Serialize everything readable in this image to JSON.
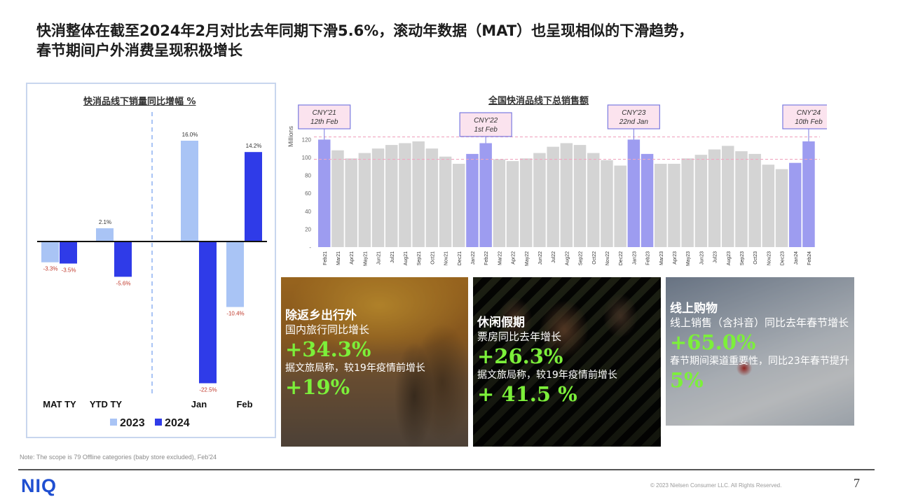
{
  "title": {
    "line1": "快消整体在截至2024年2月对比去年同期下滑5.6%，滚动年数据（MAT）也呈现相似的下滑趋势，",
    "line2": "春节期间户外消费呈现积极增长"
  },
  "colors": {
    "c2023": "#a9c4f5",
    "c2024": "#2f3be8",
    "gray": "#d4d4d4",
    "highlight": "#9d9cf0",
    "ref_line": "#f0a6c0",
    "neg_label": "#c0392b",
    "green": "#7cf03a"
  },
  "chart_data": [
    {
      "type": "bar",
      "title": "快消品线下销量同比增幅 %",
      "categories": [
        "MAT TY",
        "YTD TY",
        "Jan",
        "Feb"
      ],
      "series": [
        {
          "name": "2023",
          "values": [
            -3.3,
            2.1,
            16.0,
            -10.4
          ]
        },
        {
          "name": "2024",
          "values": [
            -3.5,
            -5.6,
            -22.5,
            14.2
          ]
        }
      ],
      "data_labels": {
        "2023": [
          "-3.3%",
          "2.1%",
          "16.0%",
          "-10.4%"
        ],
        "2024": [
          "-3.5%",
          "-5.6%",
          "-22.5%",
          "14.2%"
        ]
      },
      "ylim": [
        -25,
        18
      ],
      "legend": "bottom"
    },
    {
      "type": "bar",
      "title": "全国快消品线下总销售额",
      "ylabel": "Millions",
      "yticks": [
        "-",
        "20",
        "40",
        "60",
        "80",
        "100",
        "120"
      ],
      "ylim": [
        0,
        130
      ],
      "categories": [
        "Feb21",
        "Mar21",
        "Apr21",
        "May21",
        "Jun21",
        "Jul21",
        "Aug21",
        "Sep21",
        "Oct21",
        "Nov21",
        "Dec21",
        "Jan22",
        "Feb22",
        "Mar22",
        "Apr22",
        "May22",
        "Jun22",
        "Jul22",
        "Aug22",
        "Sep22",
        "Oct22",
        "Nov22",
        "Dec22",
        "Jan23",
        "Feb23",
        "Mar23",
        "Apr23",
        "May23",
        "Jun23",
        "Jul23",
        "Aug23",
        "Sep23",
        "Oct23",
        "Nov23",
        "Dec23",
        "Jan24",
        "Feb24"
      ],
      "values": [
        120,
        108,
        99,
        105,
        110,
        114,
        116,
        118,
        110,
        101,
        93,
        104,
        116,
        98,
        96,
        99,
        105,
        112,
        116,
        114,
        105,
        97,
        91,
        120,
        104,
        93,
        93,
        99,
        103,
        109,
        113,
        107,
        104,
        92,
        87,
        94,
        118
      ],
      "highlighted": [
        0,
        11,
        12,
        23,
        24,
        35,
        36
      ],
      "reference_lines": [
        123,
        98
      ],
      "annotations": [
        {
          "line1": "CNY'21",
          "line2": "12th Feb"
        },
        {
          "line1": "CNY'22",
          "line2": "1st Feb"
        },
        {
          "line1": "CNY'23",
          "line2": "22nd Jan"
        },
        {
          "line1": "CNY'24",
          "line2": "10th Feb"
        }
      ]
    }
  ],
  "cards": [
    {
      "head": "除返乡出行外",
      "sub": "国内旅行同比增长",
      "big1": "+34.3%",
      "note": "据文旅局称，较19年疫情前增长",
      "big2": "+19%"
    },
    {
      "head": "休闲假期",
      "sub": "票房同比去年增长",
      "big1": "+26.3%",
      "note": "据文旅局称，较19年疫情前增长",
      "big2": "+ 41.5 %"
    },
    {
      "head": "线上购物",
      "sub": "线上销售（含抖音）同比去年春节增长",
      "big1": "+65.0%",
      "note": "春节期间渠道重要性，同比23年春节提升",
      "big2": "5%"
    }
  ],
  "legend": {
    "y2023": "2023",
    "y2024": "2024"
  },
  "footnote": "Note: The scope is 79 Offline categories (baby store excluded), Feb'24",
  "copyright": "© 2023 Nielsen Consumer LLC. All Rights Reserved.",
  "page_number": "7",
  "logo": "NIQ"
}
